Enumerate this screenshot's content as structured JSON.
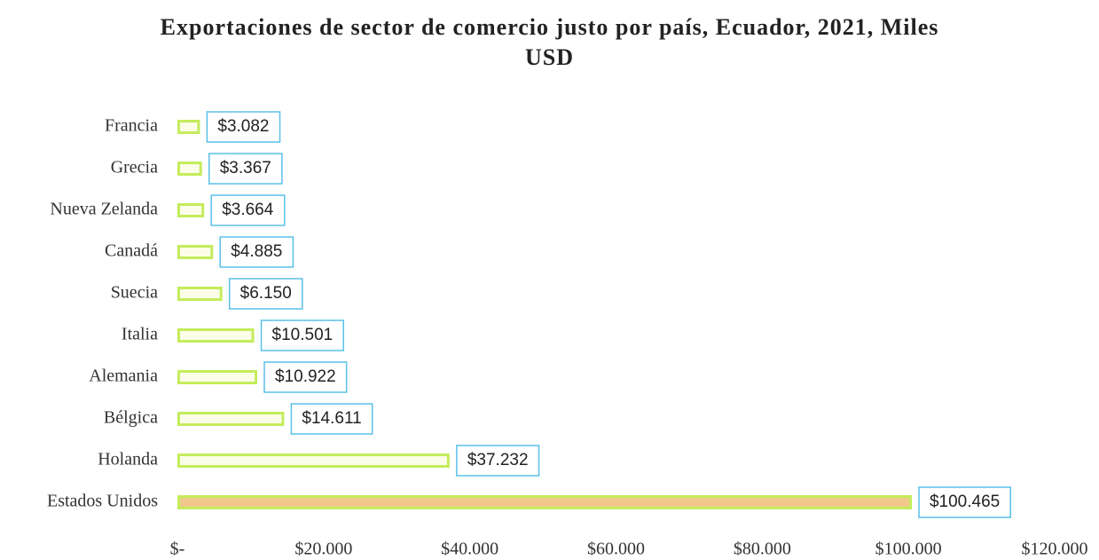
{
  "chart_data": {
    "type": "hbar",
    "title": "Exportaciones de sector de comercio justo por país, Ecuador, 2021, Miles USD",
    "categories": [
      "Francia",
      "Grecia",
      "Nueva Zelanda",
      "Canadá",
      "Suecia",
      "Italia",
      "Alemania",
      "Bélgica",
      "Holanda",
      "Estados Unidos"
    ],
    "values": [
      3082,
      3367,
      3664,
      4885,
      6150,
      10501,
      10922,
      14611,
      37232,
      100465
    ],
    "value_labels": [
      "$3.082",
      "$3.367",
      "$3.664",
      "$4.885",
      "$6.150",
      "$10.501",
      "$10.922",
      "$14.611",
      "$37.232",
      "$100.465"
    ],
    "color": "#c4ec5c",
    "xlim": [
      0,
      120000
    ],
    "xticks": [
      {
        "value": 0,
        "label": "$-"
      },
      {
        "value": 20000,
        "label": "$20.000"
      },
      {
        "value": 40000,
        "label": "$40.000"
      },
      {
        "value": 60000,
        "label": "$60.000"
      },
      {
        "value": 80000,
        "label": "$80.000"
      },
      {
        "value": 100000,
        "label": "$100.000"
      },
      {
        "value": 120000,
        "label": "$120.000"
      }
    ],
    "grid": false
  }
}
